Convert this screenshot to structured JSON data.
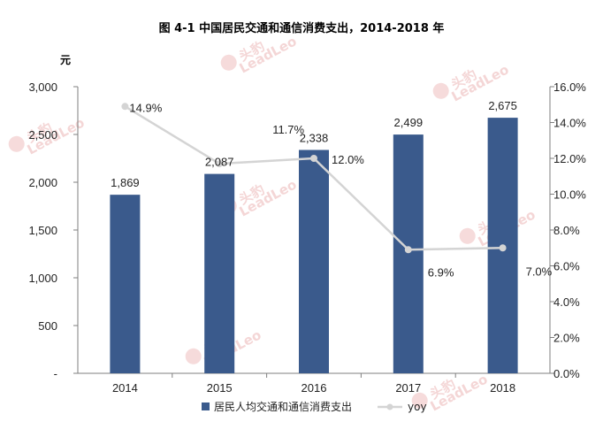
{
  "chart_data": {
    "type": "bar",
    "title": "图  4-1 中国居民交通和通信消费支出，2014-2018 年",
    "categories": [
      "2014",
      "2015",
      "2016",
      "2017",
      "2018"
    ],
    "series": [
      {
        "name": "居民人均交通和通信消费支出",
        "type": "bar",
        "axis": "left",
        "values": [
          1869,
          2087,
          2338,
          2499,
          2675
        ],
        "labels": [
          "1,869",
          "2,087",
          "2,338",
          "2,499",
          "2,675"
        ]
      },
      {
        "name": "yoy",
        "type": "line",
        "axis": "right",
        "values": [
          14.9,
          11.7,
          12.0,
          6.9,
          7.0
        ],
        "labels": [
          "14.9%",
          "11.7%",
          "12.0%",
          "6.9%",
          "7.0%"
        ]
      }
    ],
    "ylabel": "元",
    "ylim": [
      0,
      3000
    ],
    "yticks": [
      "-",
      "500",
      "1,000",
      "1,500",
      "2,000",
      "2,500",
      "3,000"
    ],
    "y2lim": [
      0,
      16
    ],
    "y2ticks": [
      "0.0%",
      "2.0%",
      "4.0%",
      "6.0%",
      "8.0%",
      "10.0%",
      "12.0%",
      "14.0%",
      "16.0%"
    ],
    "grid": false,
    "legend_position": "bottom",
    "colors": {
      "bar": "#3a5a8c",
      "line": "#d4d4d4",
      "axis": "#7f7f7f"
    }
  },
  "watermark": {
    "brand": "头豹",
    "sub": "LeadLeo"
  }
}
